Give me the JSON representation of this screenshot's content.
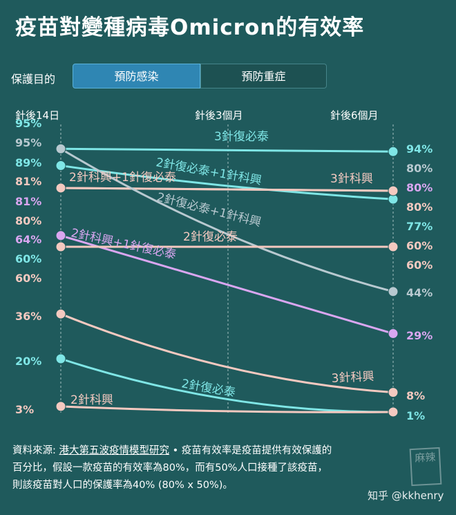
{
  "title": "疫苗對變種病毒Omicron的有效率",
  "purpose": {
    "label": "保護目的",
    "tabs": [
      {
        "label": "預防感染",
        "active": true
      },
      {
        "label": "預防重症",
        "active": false
      }
    ]
  },
  "colors": {
    "background": "#1f5a5c",
    "cyan": "#7fe6e6",
    "grey": "#b8c9d0",
    "pink": "#f4c9c0",
    "purple": "#d9a6f0",
    "tab_active": "#2f86b3"
  },
  "chart_data": {
    "type": "line",
    "x": [
      "針後14日",
      "針後3個月",
      "針後6個月"
    ],
    "series": [
      {
        "name": "3針復必泰",
        "color": "#7fe6e6",
        "points": [
          [
            0,
            95
          ],
          [
            2,
            94
          ]
        ]
      },
      {
        "name": "2針復必泰+1針科興",
        "color": "#7fe6e6",
        "points": [
          [
            0,
            89
          ],
          [
            2,
            77
          ]
        ]
      },
      {
        "name": "2針科興+1針復必泰",
        "color": "#f4c9c0",
        "points": [
          [
            0,
            81
          ],
          [
            2,
            80
          ]
        ]
      },
      {
        "name": "3針科興",
        "color": "#f4c9c0",
        "points": [
          [
            0,
            81
          ],
          [
            2,
            80
          ]
        ]
      },
      {
        "name": "2針復必泰+1針科興",
        "color": "#b8c9d0",
        "points": [
          [
            0,
            95
          ],
          [
            2,
            44
          ]
        ]
      },
      {
        "name": "2針科興+1針復必泰",
        "color": "#d9a6f0",
        "points": [
          [
            0,
            64
          ],
          [
            2,
            29
          ]
        ]
      },
      {
        "name": "2針復必泰",
        "color": "#f4c9c0",
        "points": [
          [
            0,
            60
          ],
          [
            2,
            60
          ]
        ]
      },
      {
        "name": "3針科興",
        "color": "#f4c9c0",
        "points": [
          [
            0,
            36
          ],
          [
            2,
            8
          ]
        ]
      },
      {
        "name": "2針復必泰",
        "color": "#7fe6e6",
        "points": [
          [
            0,
            20
          ],
          [
            2,
            1
          ]
        ]
      },
      {
        "name": "2針科興",
        "color": "#f4c9c0",
        "points": [
          [
            0,
            3
          ],
          [
            2,
            1
          ]
        ]
      }
    ],
    "left_labels": [
      {
        "text": "95%",
        "color": "#7fe6e6"
      },
      {
        "text": "95%",
        "color": "#b8c9d0"
      },
      {
        "text": "89%",
        "color": "#7fe6e6"
      },
      {
        "text": "81%",
        "color": "#f4c9c0"
      },
      {
        "text": "81%",
        "color": "#d9a6f0"
      },
      {
        "text": "80%",
        "color": "#f4c9c0"
      },
      {
        "text": "64%",
        "color": "#d9a6f0"
      },
      {
        "text": "60%",
        "color": "#7fe6e6"
      },
      {
        "text": "60%",
        "color": "#f4c9c0"
      },
      {
        "text": "36%",
        "color": "#f4c9c0"
      },
      {
        "text": "20%",
        "color": "#7fe6e6"
      },
      {
        "text": "3%",
        "color": "#f4c9c0"
      }
    ],
    "right_labels": [
      {
        "text": "94%",
        "color": "#7fe6e6"
      },
      {
        "text": "80%",
        "color": "#b8c9d0"
      },
      {
        "text": "80%",
        "color": "#d9a6f0"
      },
      {
        "text": "80%",
        "color": "#f4c9c0"
      },
      {
        "text": "77%",
        "color": "#7fe6e6"
      },
      {
        "text": "60%",
        "color": "#f4c9c0"
      },
      {
        "text": "60%",
        "color": "#f4c9c0"
      },
      {
        "text": "44%",
        "color": "#b8c9d0"
      },
      {
        "text": "29%",
        "color": "#d9a6f0"
      },
      {
        "text": "8%",
        "color": "#f4c9c0"
      },
      {
        "text": "1%",
        "color": "#7fe6e6"
      }
    ]
  },
  "footer": {
    "source_prefix": "資料來源: ",
    "source_link": "港大第五波疫情模型研究",
    "line1_rest": "• 疫苗有效率是疫苗提供有效保護的",
    "line2": "百分比，假設一款疫苗的有效率為80%，而有50%人口接種了該疫苗，",
    "line3": "則該疫苗對人口的保護率為40% (80% x 50%)。"
  },
  "watermark": "知乎 @kkhenry",
  "seal_text": "麻辣"
}
